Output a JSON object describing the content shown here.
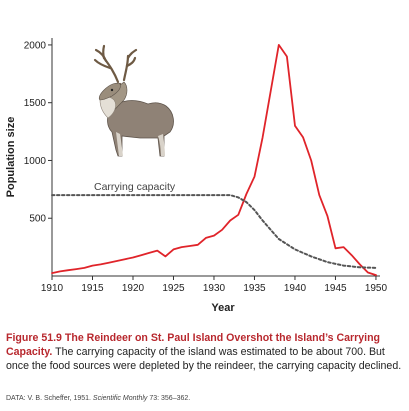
{
  "chart_data": {
    "type": "line",
    "title": "",
    "xlabel": "Year",
    "ylabel": "Population size",
    "xlim": [
      1910,
      1950.5
    ],
    "ylim": [
      0,
      2060
    ],
    "xticks": [
      1910,
      1915,
      1920,
      1925,
      1930,
      1935,
      1940,
      1945,
      1950
    ],
    "yticks": [
      500,
      1000,
      1500,
      2000
    ],
    "series": [
      {
        "name": "",
        "style": "solid",
        "color": "#e0242a",
        "x": [
          1910,
          1911,
          1912,
          1913,
          1914,
          1915,
          1916,
          1917,
          1918,
          1919,
          1920,
          1921,
          1922,
          1923,
          1924,
          1925,
          1926,
          1927,
          1928,
          1929,
          1930,
          1931,
          1932,
          1933,
          1934,
          1935,
          1936,
          1937,
          1938,
          1939,
          1940,
          1941,
          1942,
          1943,
          1944,
          1945,
          1946,
          1947,
          1948,
          1949,
          1950
        ],
        "y": [
          25,
          40,
          50,
          60,
          70,
          90,
          100,
          115,
          130,
          145,
          160,
          180,
          200,
          220,
          170,
          230,
          250,
          260,
          270,
          330,
          350,
          400,
          480,
          530,
          710,
          860,
          1200,
          1600,
          2000,
          1900,
          1300,
          1200,
          1000,
          700,
          520,
          240,
          250,
          180,
          100,
          30,
          8
        ]
      },
      {
        "name": "Carrying capacity",
        "style": "dashed",
        "color": "#555555",
        "x": [
          1910,
          1932,
          1933,
          1934,
          1935,
          1936,
          1937,
          1938,
          1940,
          1942,
          1944,
          1946,
          1948,
          1950
        ],
        "y": [
          700,
          700,
          680,
          640,
          570,
          480,
          400,
          320,
          230,
          170,
          120,
          90,
          75,
          70
        ]
      }
    ],
    "annotation": "Carrying capacity",
    "grid": false
  },
  "caption": {
    "figure_number": "Figure 51.9",
    "title": "The Reindeer on St. Paul Island Overshot the Island’s Carrying Capacity.",
    "body": "The carrying capacity of the island was estimated to be about 700. But once the food sources were depleted by the reindeer, the carrying capacity declined."
  },
  "source": {
    "prefix": "DATA: V. B. Scheffer, 1951.",
    "journal": "Scientific Monthly",
    "suffix": "73: 356–362."
  },
  "illustration": "reindeer-image",
  "colors": {
    "population_line": "#e0242a",
    "capacity_line": "#555555",
    "caption_accent": "#b8282e"
  }
}
